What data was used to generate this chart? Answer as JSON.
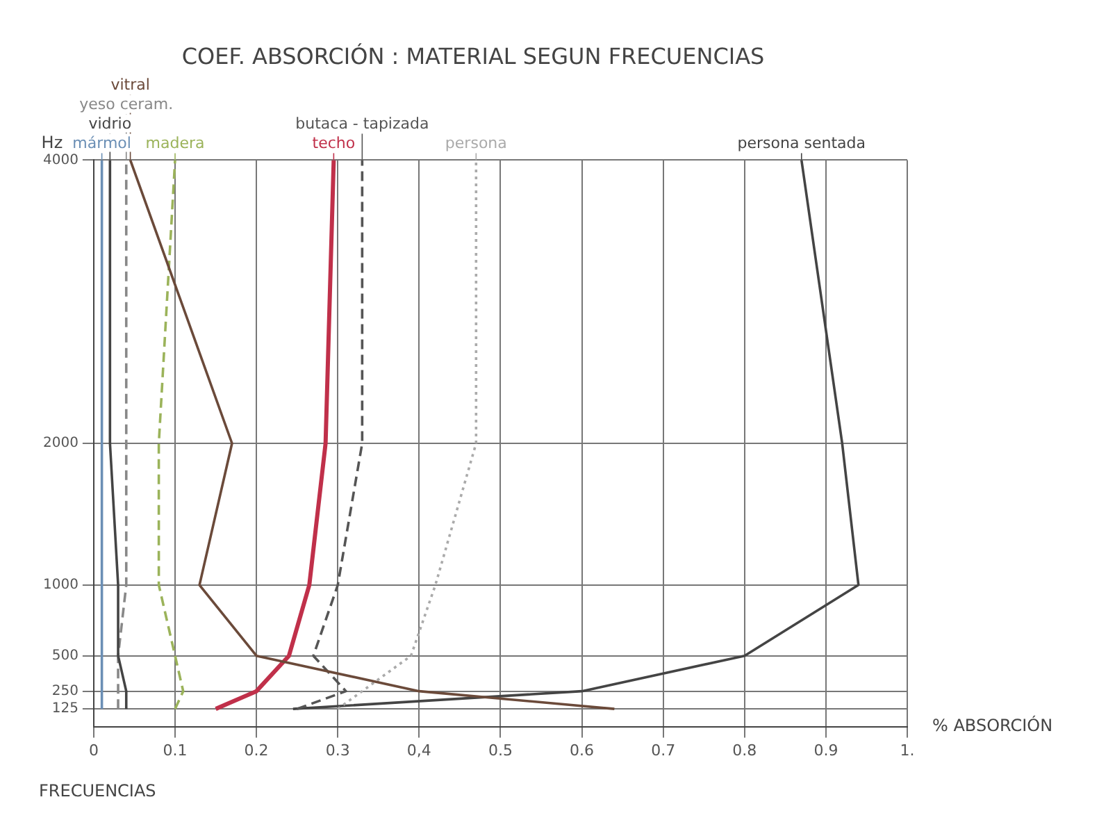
{
  "chart_data": {
    "type": "line",
    "title": "COEF. ABSORCIÓN : MATERIAL SEGUN FRECUENCIAS",
    "xlabel": "% ABSORCIÓN",
    "ylabel": "Hz",
    "annotations": [
      "FRECUENCIAS"
    ],
    "xlim": [
      0,
      1
    ],
    "xticks": [
      0,
      {
        "value": 0.1,
        "label": "0.1"
      },
      {
        "value": 0.2,
        "label": "0.2"
      },
      {
        "value": 0.3,
        "label": "0.3"
      },
      {
        "value": 0.4,
        "label": "0,4"
      },
      {
        "value": 0.5,
        "label": "0.5"
      },
      {
        "value": 0.6,
        "label": "0.6"
      },
      {
        "value": 0.7,
        "label": "0.7"
      },
      {
        "value": 0.8,
        "label": "0.8"
      },
      {
        "value": 0.9,
        "label": "0.9"
      },
      {
        "value": 1,
        "label": "1."
      }
    ],
    "ylim": [
      0,
      4000
    ],
    "yticks": [
      125,
      250,
      500,
      1000,
      2000,
      4000
    ],
    "grid": true,
    "marker": "none",
    "series": [
      {
        "name": "vidrio",
        "color": "#444444",
        "line_style": "solid",
        "x": [
          0.04,
          0.04,
          0.03,
          0.03,
          0.02,
          0.02
        ],
        "values": [
          125,
          250,
          500,
          1000,
          2000,
          4000
        ]
      },
      {
        "name": "yeso ceram.",
        "color": "#888888",
        "line_style": "dashed",
        "x": [
          0.03,
          0.03,
          0.03,
          0.04,
          0.04,
          0.04
        ],
        "values": [
          125,
          250,
          500,
          1000,
          2000,
          4000
        ]
      },
      {
        "name": "mármol",
        "color": "#6b8fb5",
        "line_style": "solid",
        "x": [
          0.01,
          0.01,
          0.01,
          0.01,
          0.01,
          0.01
        ],
        "values": [
          125,
          250,
          500,
          1000,
          2000,
          4000
        ]
      },
      {
        "name": "vitral",
        "color": "#6b4a3a",
        "line_style": "solid",
        "x": [
          0.64,
          0.4,
          0.2,
          0.13,
          0.17,
          0.045
        ],
        "values": [
          125,
          250,
          500,
          1000,
          2000,
          4000
        ]
      },
      {
        "name": "madera",
        "color": "#9bb35a",
        "line_style": "dashed",
        "x": [
          0.1,
          0.11,
          0.1,
          0.08,
          0.08,
          0.1
        ],
        "values": [
          125,
          250,
          500,
          1000,
          2000,
          4000
        ]
      },
      {
        "name": "techo",
        "color": "#c0304a",
        "line_style": "solid",
        "x": [
          0.15,
          0.2,
          0.24,
          0.265,
          0.285,
          0.295
        ],
        "values": [
          125,
          250,
          500,
          1000,
          2000,
          4000
        ]
      },
      {
        "name": "butaca - tapizada",
        "color": "#555555",
        "line_style": "dashed",
        "x": [
          0.25,
          0.31,
          0.27,
          0.3,
          0.33,
          0.33
        ],
        "values": [
          125,
          250,
          500,
          1000,
          2000,
          4000
        ]
      },
      {
        "name": "persona",
        "color": "#aaaaaa",
        "line_style": "dotted",
        "x": [
          0.3,
          0.33,
          0.39,
          0.42,
          0.47,
          0.47
        ],
        "values": [
          125,
          250,
          500,
          1000,
          2000,
          4000
        ]
      },
      {
        "name": "persona sentada",
        "color": "#444444",
        "line_style": "solid",
        "x": [
          0.245,
          0.6,
          0.8,
          0.94,
          0.92,
          0.87
        ],
        "values": [
          125,
          250,
          500,
          1000,
          2000,
          4000
        ]
      }
    ]
  }
}
